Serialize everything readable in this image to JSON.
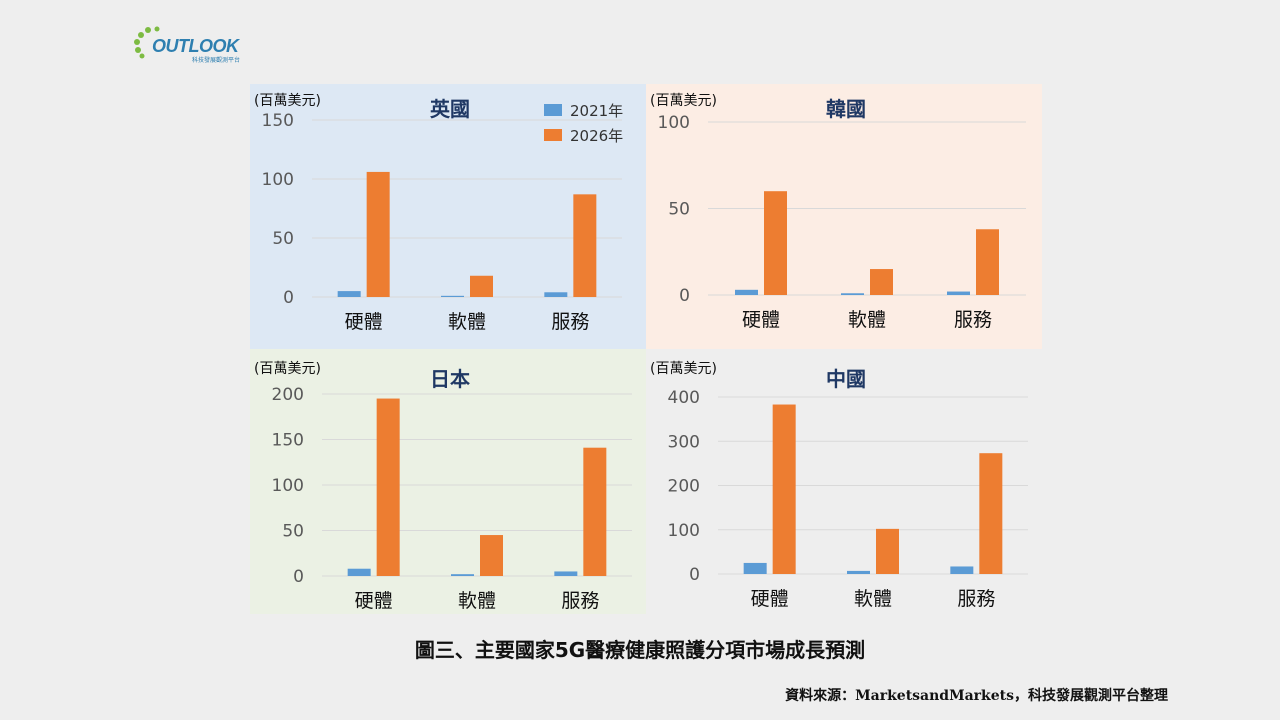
{
  "logo": {
    "text": "OUTLOOK",
    "subtitle": "科技發展觀測平台"
  },
  "caption": "圖三、主要國家5G醫療健康照護分項市場成長預測",
  "source": "資料來源：MarketsandMarkets，科技發展觀測平台整理",
  "colors": {
    "series_2021": "#5b9bd5",
    "series_2026": "#ed7d31",
    "title": "#1f3864",
    "grid": "#d9d9d9"
  },
  "chart_data": [
    {
      "type": "bar",
      "title": "英國",
      "unit": "(百萬美元)",
      "background": "#dde8f4",
      "categories": [
        "硬體",
        "軟體",
        "服務"
      ],
      "series": [
        {
          "name": "2021年",
          "values": [
            5,
            1,
            4
          ]
        },
        {
          "name": "2026年",
          "values": [
            106,
            18,
            87
          ]
        }
      ],
      "ylim": [
        0,
        150
      ],
      "yticks": [
        0,
        50,
        100,
        150
      ],
      "legend": "top-right"
    },
    {
      "type": "bar",
      "title": "韓國",
      "unit": "(百萬美元)",
      "background": "#fcede4",
      "categories": [
        "硬體",
        "軟體",
        "服務"
      ],
      "series": [
        {
          "name": "2021年",
          "values": [
            3,
            1,
            2
          ]
        },
        {
          "name": "2026年",
          "values": [
            60,
            15,
            38
          ]
        }
      ],
      "ylim": [
        0,
        100
      ],
      "yticks": [
        0,
        50,
        100
      ]
    },
    {
      "type": "bar",
      "title": "日本",
      "unit": "(百萬美元)",
      "background": "#ebf1e4",
      "categories": [
        "硬體",
        "軟體",
        "服務"
      ],
      "series": [
        {
          "name": "2021年",
          "values": [
            8,
            2,
            5
          ]
        },
        {
          "name": "2026年",
          "values": [
            195,
            45,
            141
          ]
        }
      ],
      "ylim": [
        0,
        200
      ],
      "yticks": [
        0,
        50,
        100,
        150,
        200
      ]
    },
    {
      "type": "bar",
      "title": "中國",
      "unit": "(百萬美元)",
      "background": "#eeeeee",
      "categories": [
        "硬體",
        "軟體",
        "服務"
      ],
      "series": [
        {
          "name": "2021年",
          "values": [
            25,
            7,
            17
          ]
        },
        {
          "name": "2026年",
          "values": [
            383,
            102,
            273
          ]
        }
      ],
      "ylim": [
        0,
        400
      ],
      "yticks": [
        0,
        100,
        200,
        300,
        400
      ]
    }
  ]
}
